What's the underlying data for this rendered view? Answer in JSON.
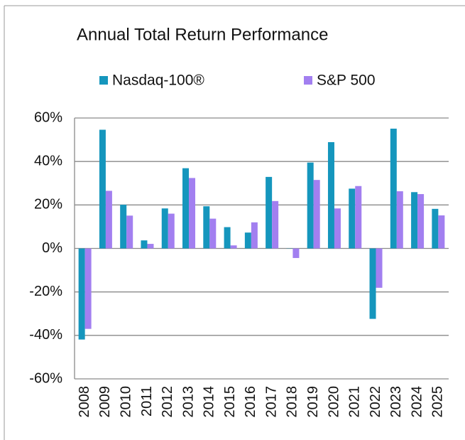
{
  "chart_data": {
    "type": "bar",
    "title": "Annual Total Return Performance",
    "categories": [
      "2008",
      "2009",
      "2010",
      "2011",
      "2012",
      "2013",
      "2014",
      "2015",
      "2016",
      "2017",
      "2018",
      "2019",
      "2020",
      "2021",
      "2022",
      "2023",
      "2024",
      "2025"
    ],
    "series": [
      {
        "name": "Nasdaq-100®",
        "color": "#1596bd",
        "values": [
          -41.9,
          54.6,
          20.1,
          3.7,
          18.4,
          36.9,
          19.4,
          9.8,
          7.3,
          32.9,
          -0.1,
          39.5,
          48.9,
          27.5,
          -32.4,
          55.1,
          25.9,
          18.2
        ]
      },
      {
        "name": "S&P 500",
        "color": "#a27ff0",
        "values": [
          -37.0,
          26.5,
          15.1,
          2.1,
          16.0,
          32.4,
          13.7,
          1.4,
          12.0,
          21.8,
          -4.4,
          31.5,
          18.4,
          28.7,
          -18.1,
          26.3,
          25.0,
          15.2
        ]
      }
    ],
    "ylim": [
      -60,
      60
    ],
    "yticks": [
      {
        "value": -60,
        "label": "-60%"
      },
      {
        "value": -40,
        "label": "-40%"
      },
      {
        "value": -20,
        "label": "-20%"
      },
      {
        "value": 0,
        "label": "0%"
      },
      {
        "value": 20,
        "label": "20%"
      },
      {
        "value": 40,
        "label": "40%"
      },
      {
        "value": 60,
        "label": "60%"
      }
    ],
    "grid": true
  }
}
